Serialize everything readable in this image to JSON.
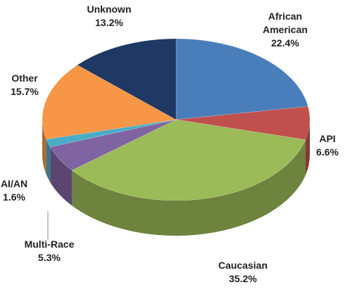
{
  "chart_data": {
    "type": "pie",
    "categories": [
      "African American",
      "API",
      "Caucasian",
      "Multi-Race",
      "AI/AN",
      "Other",
      "Unknown"
    ],
    "values": [
      22.4,
      6.6,
      35.2,
      5.3,
      1.6,
      15.7,
      13.2
    ],
    "value_labels": [
      "22.4%",
      "6.6%",
      "35.2%",
      "5.3%",
      "1.6%",
      "15.7%",
      "13.2%"
    ],
    "colors": [
      "#4a7ebb",
      "#c0504d",
      "#9bbb59",
      "#8064a2",
      "#4bacc6",
      "#f79646",
      "#1f3864"
    ],
    "start_angle": 0,
    "direction": "clockwise",
    "three_d": true
  }
}
